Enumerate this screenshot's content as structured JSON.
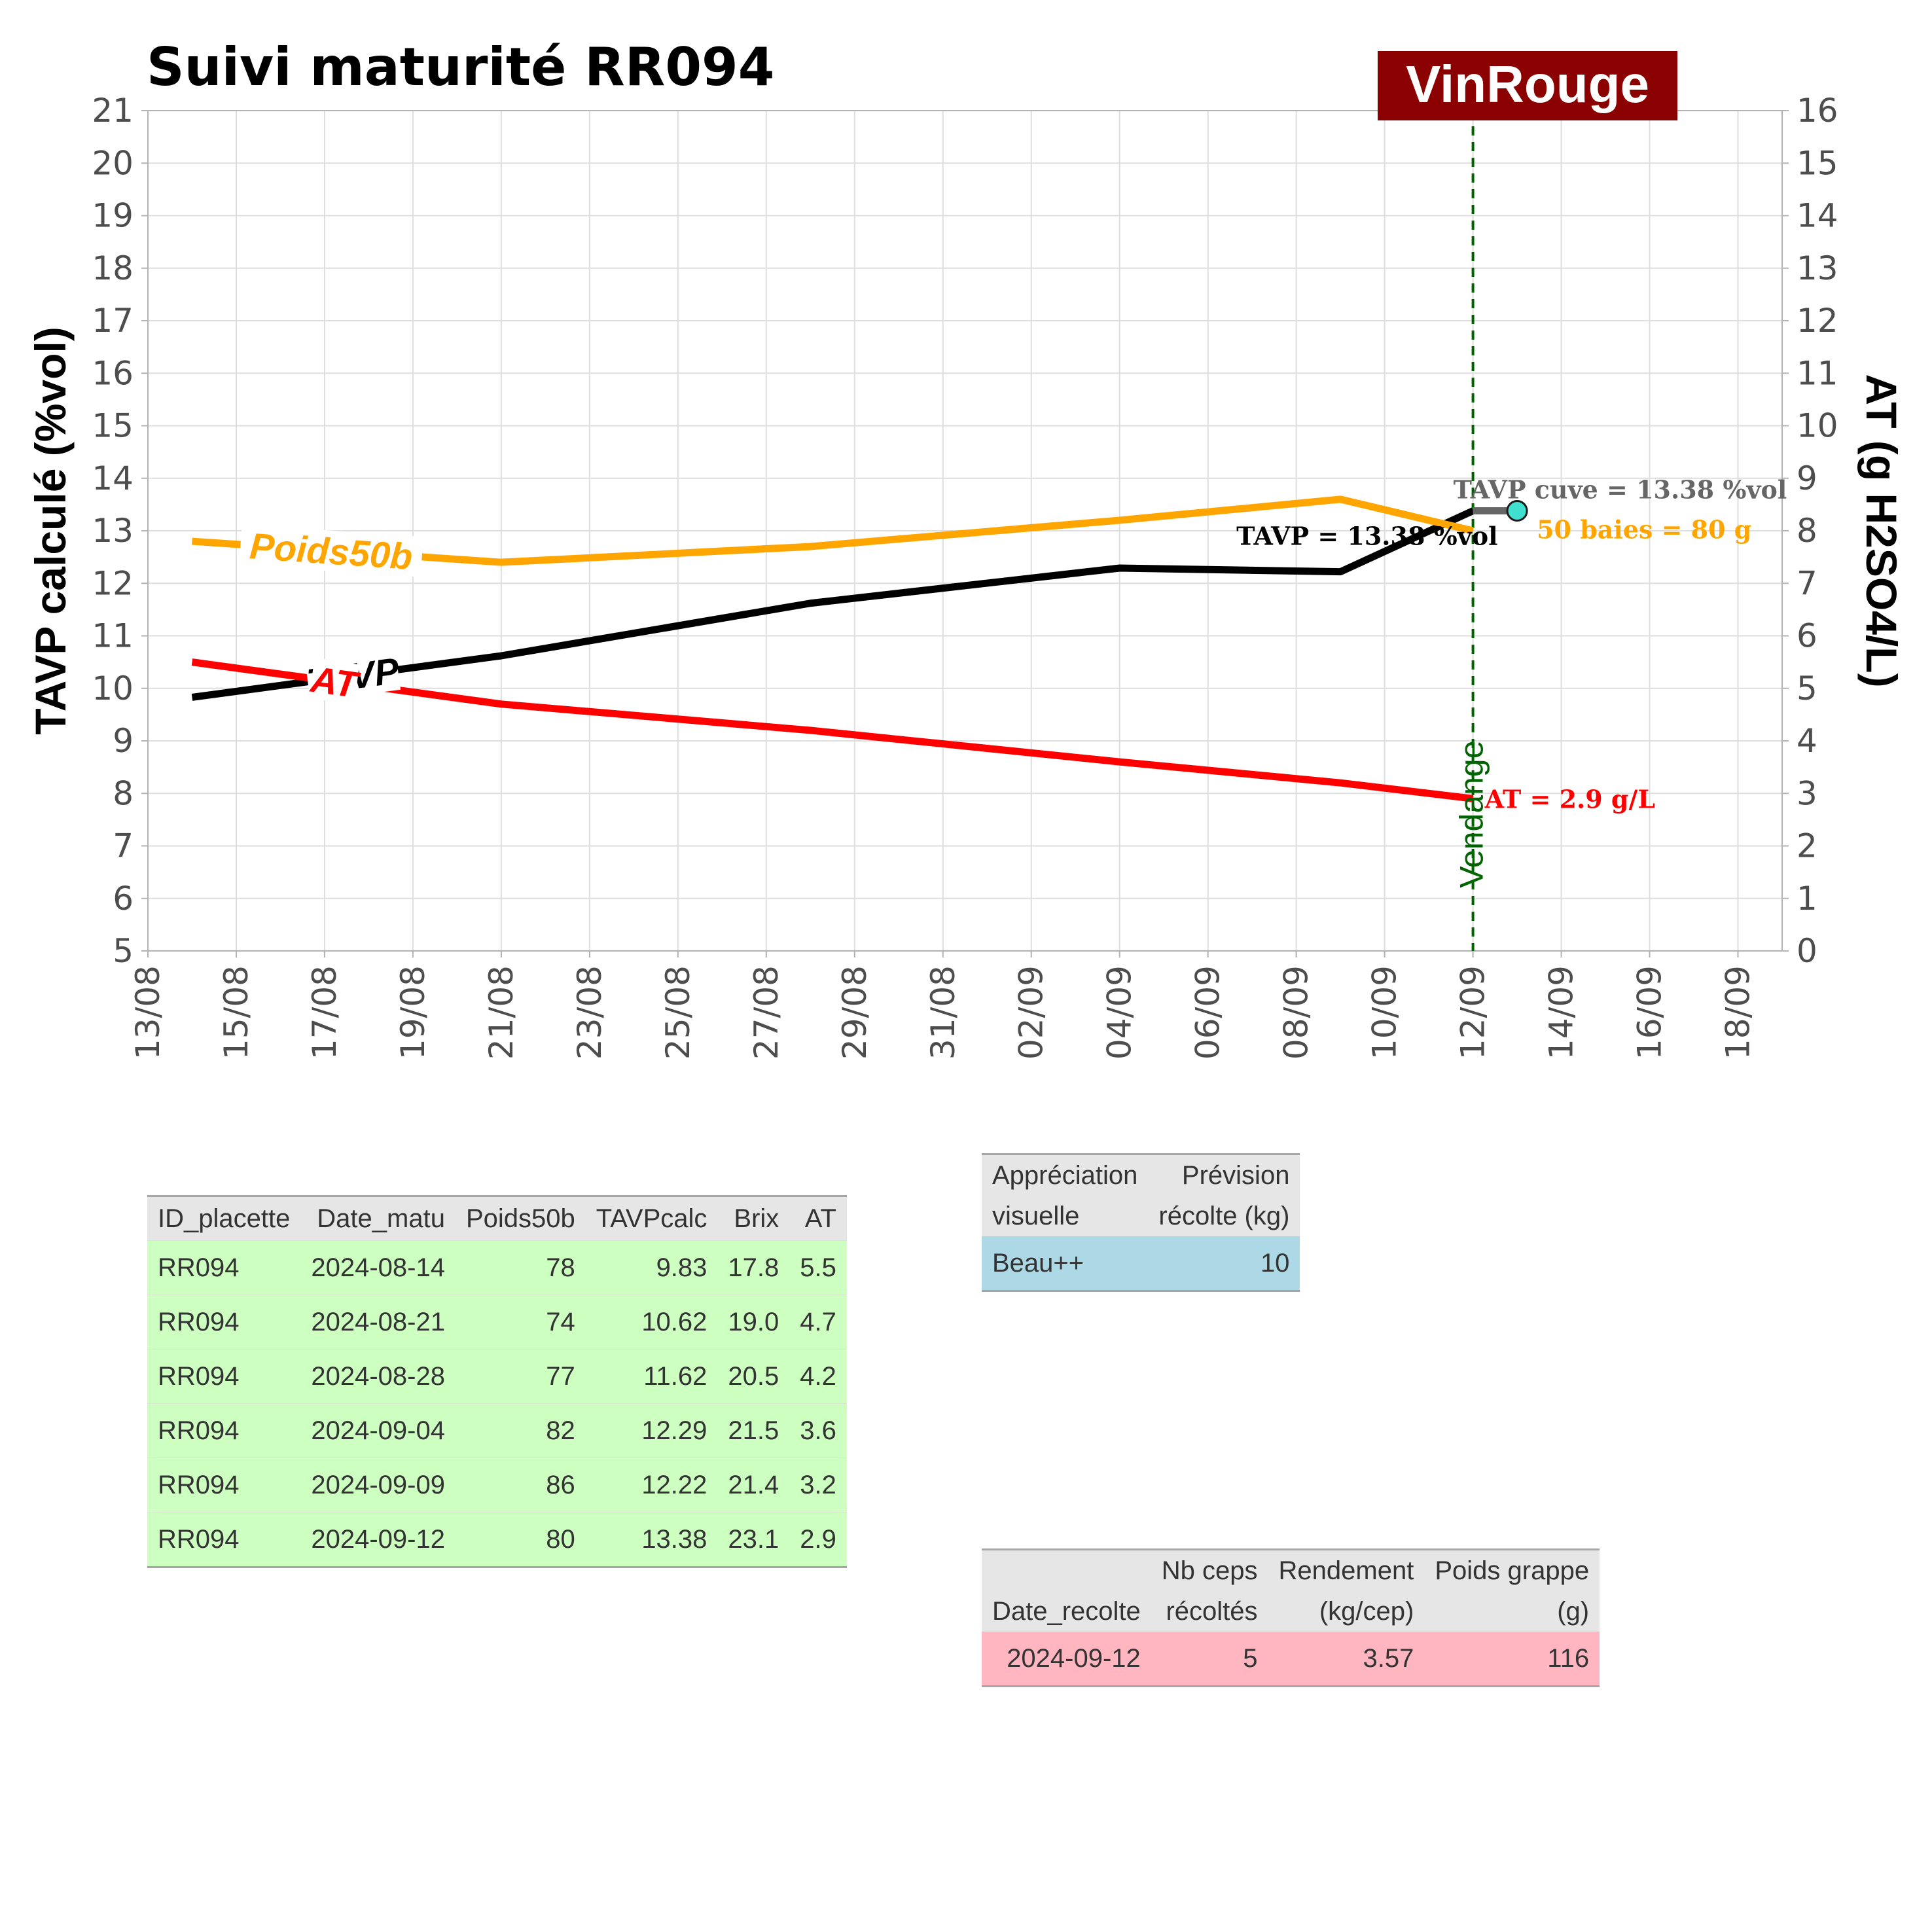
{
  "chart_data": {
    "type": "line",
    "title": "Suivi maturité  RR094",
    "badge": "VinRouge",
    "colors": {
      "tavp": "#000000",
      "at": "#ff0000",
      "poids": "#ffa500",
      "vendange": "#006400",
      "badge_bg": "#8b0000",
      "cuve": "#666666",
      "cuve_point": "#40e0d0"
    },
    "ylabel_left": "TAVP calculé (%vol)",
    "ylabel_right": "AT (g H2SO4/L)",
    "ylim_left": [
      5,
      21
    ],
    "ylim_right": [
      0,
      16
    ],
    "yticks_left": [
      "5",
      "6",
      "7",
      "8",
      "9",
      "10",
      "11",
      "12",
      "13",
      "14",
      "15",
      "16",
      "17",
      "18",
      "19",
      "20",
      "21"
    ],
    "yticks_right": [
      "0",
      "1",
      "2",
      "3",
      "4",
      "5",
      "6",
      "7",
      "8",
      "9",
      "10",
      "11",
      "12",
      "13",
      "14",
      "15",
      "16"
    ],
    "xlim": [
      "2024-08-13",
      "2024-09-19"
    ],
    "xticks": [
      "13/08",
      "15/08",
      "17/08",
      "19/08",
      "21/08",
      "23/08",
      "25/08",
      "27/08",
      "29/08",
      "31/08",
      "02/09",
      "04/09",
      "06/09",
      "08/09",
      "10/09",
      "12/09",
      "14/09",
      "16/09",
      "18/09"
    ],
    "x": [
      "2024-08-14",
      "2024-08-21",
      "2024-08-28",
      "2024-09-04",
      "2024-09-09",
      "2024-09-12"
    ],
    "series": [
      {
        "name": "TAVP",
        "axis": "left",
        "values": [
          9.83,
          10.62,
          11.62,
          12.29,
          12.22,
          13.38
        ]
      },
      {
        "name": "AT",
        "axis": "right",
        "values": [
          5.5,
          4.7,
          4.2,
          3.6,
          3.2,
          2.9
        ]
      },
      {
        "name": "Poids50b",
        "axis": "right_weight",
        "values": [
          78,
          74,
          77,
          82,
          86,
          80
        ]
      }
    ],
    "vendange": {
      "date": "2024-09-12",
      "label": "Vendange"
    },
    "cuve_point": {
      "date": "2024-09-13",
      "value": 13.38
    },
    "annotations": {
      "tavp_final": "TAVP = 13.38 %vol",
      "at_final": "AT = 2.9 g/L",
      "poids_final": "50 baies = 80 g",
      "cuve": "TAVP cuve = 13.38 %vol"
    },
    "grid": true
  },
  "tables": {
    "maturite": {
      "headers": [
        "ID_placette",
        "Date_matu",
        "Poids50b",
        "TAVPcalc",
        "Brix",
        "AT"
      ],
      "rows": [
        [
          "RR094",
          "2024-08-14",
          "78",
          "9.83",
          "17.8",
          "5.5"
        ],
        [
          "RR094",
          "2024-08-21",
          "74",
          "10.62",
          "19.0",
          "4.7"
        ],
        [
          "RR094",
          "2024-08-28",
          "77",
          "11.62",
          "20.5",
          "4.2"
        ],
        [
          "RR094",
          "2024-09-04",
          "82",
          "12.29",
          "21.5",
          "3.6"
        ],
        [
          "RR094",
          "2024-09-09",
          "86",
          "12.22",
          "21.4",
          "3.2"
        ],
        [
          "RR094",
          "2024-09-12",
          "80",
          "13.38",
          "23.1",
          "2.9"
        ]
      ]
    },
    "visuel": {
      "headers": [
        [
          "Appréciation",
          "visuelle"
        ],
        [
          "Prévision",
          "récolte (kg)"
        ]
      ],
      "row": [
        "Beau++",
        "10"
      ]
    },
    "recolte": {
      "headers": [
        [
          "",
          "Date_recolte"
        ],
        [
          "Nb ceps",
          "récoltés"
        ],
        [
          "Rendement",
          "(kg/cep)"
        ],
        [
          "Poids grappe",
          "(g)"
        ]
      ],
      "row": [
        "2024-09-12",
        "5",
        "3.57",
        "116"
      ]
    }
  }
}
